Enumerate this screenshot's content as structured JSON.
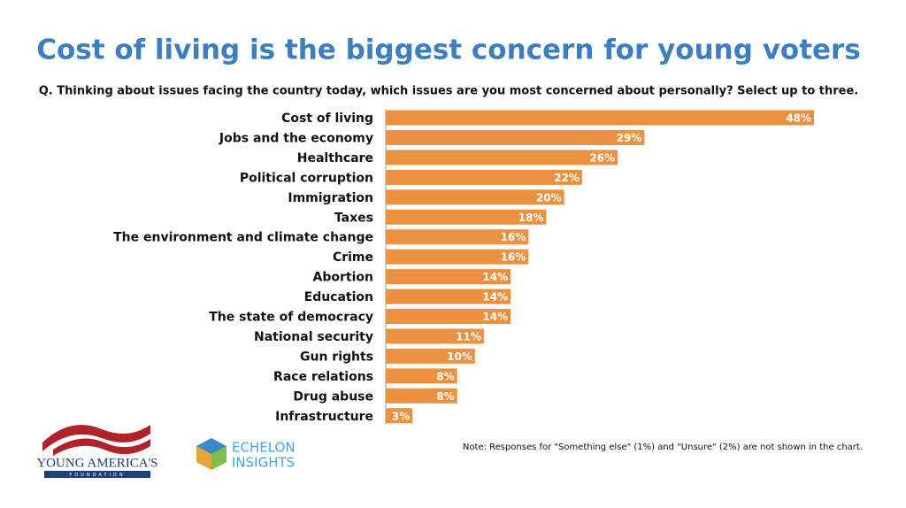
{
  "chart_data": {
    "type": "bar",
    "orientation": "horizontal",
    "title": "Cost of living is the biggest concern for young voters",
    "subtitle": "Q. Thinking about issues facing the country today, which issues are you most concerned about personally? Select up to three.",
    "categories": [
      "Cost of living",
      "Jobs and the economy",
      "Healthcare",
      "Political corruption",
      "Immigration",
      "Taxes",
      "The environment and climate change",
      "Crime",
      "Abortion",
      "Education",
      "The state of democracy",
      "National security",
      "Gun rights",
      "Race relations",
      "Drug abuse",
      "Infrastructure"
    ],
    "values": [
      48,
      29,
      26,
      22,
      20,
      18,
      16,
      16,
      14,
      14,
      14,
      11,
      10,
      8,
      8,
      3
    ],
    "value_labels": [
      "48%",
      "29%",
      "26%",
      "22%",
      "20%",
      "18%",
      "16%",
      "16%",
      "14%",
      "14%",
      "14%",
      "11%",
      "10%",
      "8%",
      "8%",
      "3%"
    ],
    "color": "#ec9140",
    "note": "Note: Responses for \"Something else\" (1%) and \"Unsure\" (2%) are not shown in the chart."
  },
  "logos": {
    "yaf": {
      "name": "YOUNG AMERICA'S",
      "sub": "FOUNDATION"
    },
    "echelon": {
      "name": "ECHELON",
      "sub": "INSIGHTS"
    }
  }
}
